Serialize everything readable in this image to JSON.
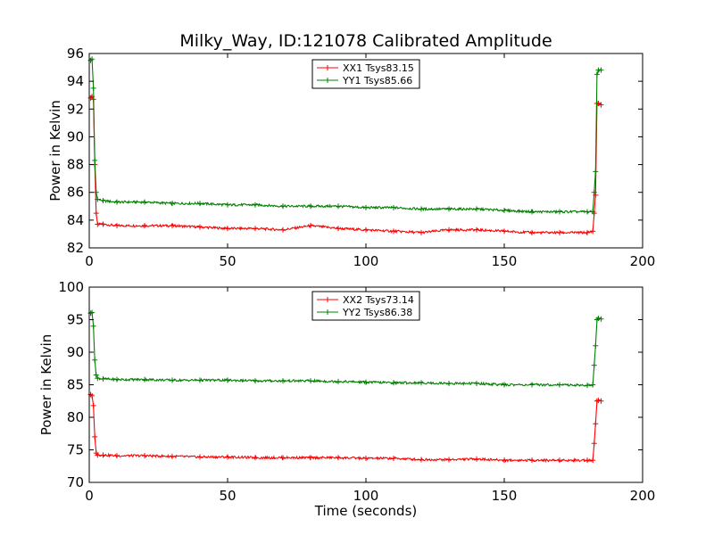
{
  "figure": {
    "title": "Milky_Way, ID:121078 Calibrated Amplitude"
  },
  "chart_data": [
    {
      "type": "line",
      "title": "Milky_Way, ID:121078 Calibrated Amplitude",
      "xlabel": "",
      "ylabel": "Power in Kelvin",
      "xlim": [
        0,
        200
      ],
      "ylim": [
        82,
        96
      ],
      "xticks": [
        0,
        50,
        100,
        150,
        200
      ],
      "yticks": [
        82,
        84,
        86,
        88,
        90,
        92,
        94,
        96
      ],
      "legend_position": "top-center",
      "series": [
        {
          "name": "XX1 Tsys83.15",
          "color": "#ff0000",
          "x": [
            0.5,
            1,
            1.5,
            2,
            2.5,
            3,
            5,
            10,
            20,
            30,
            40,
            50,
            60,
            70,
            80,
            90,
            100,
            110,
            120,
            130,
            140,
            150,
            160,
            170,
            180,
            182,
            182.5,
            183,
            183.5,
            184,
            185
          ],
          "y": [
            92.8,
            92.9,
            92.7,
            88.0,
            84.5,
            83.7,
            83.7,
            83.6,
            83.6,
            83.6,
            83.5,
            83.4,
            83.4,
            83.3,
            83.6,
            83.4,
            83.3,
            83.2,
            83.1,
            83.3,
            83.3,
            83.2,
            83.1,
            83.1,
            83.1,
            83.2,
            84.5,
            85.8,
            92.4,
            92.4,
            92.3
          ]
        },
        {
          "name": "YY1 Tsys85.66",
          "color": "#008000",
          "x": [
            0.5,
            1,
            1.5,
            2,
            2.5,
            3,
            5,
            10,
            20,
            30,
            40,
            50,
            60,
            70,
            80,
            90,
            100,
            110,
            120,
            130,
            140,
            150,
            160,
            170,
            180,
            182,
            182.5,
            183,
            183.5,
            184,
            185
          ],
          "y": [
            95.5,
            95.6,
            93.5,
            88.3,
            86.0,
            85.5,
            85.4,
            85.3,
            85.3,
            85.2,
            85.2,
            85.1,
            85.1,
            85.0,
            85.0,
            85.0,
            84.9,
            84.9,
            84.8,
            84.8,
            84.8,
            84.7,
            84.6,
            84.6,
            84.6,
            84.6,
            86.0,
            87.5,
            94.5,
            94.8,
            94.8
          ]
        }
      ]
    },
    {
      "type": "line",
      "title": "",
      "xlabel": "Time (seconds)",
      "ylabel": "Power in Kelvin",
      "xlim": [
        0,
        200
      ],
      "ylim": [
        70,
        100
      ],
      "xticks": [
        0,
        50,
        100,
        150,
        200
      ],
      "yticks": [
        70,
        75,
        80,
        85,
        90,
        95,
        100
      ],
      "legend_position": "top-center",
      "series": [
        {
          "name": "XX2 Tsys73.14",
          "color": "#ff0000",
          "x": [
            0.5,
            1,
            1.5,
            2,
            2.5,
            3,
            5,
            10,
            20,
            30,
            40,
            50,
            60,
            70,
            80,
            90,
            100,
            110,
            120,
            130,
            140,
            150,
            160,
            170,
            180,
            182,
            182.5,
            183,
            183.5,
            184,
            185
          ],
          "y": [
            83.5,
            83.3,
            81.8,
            77.0,
            74.5,
            74.2,
            74.2,
            74.1,
            74.1,
            74.0,
            73.9,
            73.9,
            73.8,
            73.8,
            73.8,
            73.8,
            73.7,
            73.7,
            73.5,
            73.5,
            73.6,
            73.4,
            73.4,
            73.4,
            73.4,
            73.4,
            76.0,
            79.0,
            82.5,
            82.6,
            82.5
          ]
        },
        {
          "name": "YY2 Tsys86.38",
          "color": "#008000",
          "x": [
            0.5,
            1,
            1.5,
            2,
            2.5,
            3,
            5,
            10,
            20,
            30,
            40,
            50,
            60,
            70,
            80,
            90,
            100,
            110,
            120,
            130,
            140,
            150,
            160,
            170,
            180,
            182,
            182.5,
            183,
            183.5,
            184,
            185
          ],
          "y": [
            96.0,
            96.1,
            94.0,
            88.8,
            86.5,
            86.0,
            85.9,
            85.8,
            85.8,
            85.7,
            85.7,
            85.7,
            85.6,
            85.6,
            85.6,
            85.5,
            85.4,
            85.3,
            85.3,
            85.2,
            85.2,
            85.0,
            85.0,
            85.0,
            84.9,
            85.0,
            88.0,
            91.0,
            95.0,
            95.2,
            95.1
          ]
        }
      ]
    }
  ]
}
